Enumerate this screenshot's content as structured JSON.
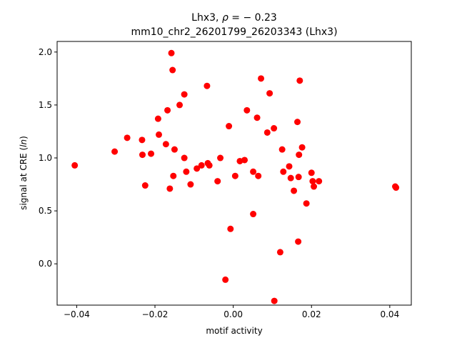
{
  "chart_data": {
    "type": "scatter",
    "title_line1_prefix": "Lhx3, ",
    "title_line1_rho": "ρ",
    "title_line1_suffix": " = − 0.23",
    "title_line2": "mm10_chr2_26201799_26203343 (Lhx3)",
    "xlabel": "motif activity",
    "ylabel_prefix": "signal at CRE (",
    "ylabel_italic": "ln",
    "ylabel_suffix": ")",
    "xlim": [
      -0.045,
      0.0455
    ],
    "ylim": [
      -0.39,
      2.1
    ],
    "xticks": [
      -0.04,
      -0.02,
      0.0,
      0.02,
      0.04
    ],
    "xtick_labels": [
      "−0.04",
      "−0.02",
      "0.00",
      "0.02",
      "0.04"
    ],
    "yticks": [
      0.0,
      0.5,
      1.0,
      1.5,
      2.0
    ],
    "ytick_labels": [
      "0.0",
      "0.5",
      "1.0",
      "1.5",
      "2.0"
    ],
    "marker_color": "#ff0000",
    "x": [
      -0.0405,
      -0.0303,
      -0.0271,
      -0.0233,
      -0.0232,
      -0.0225,
      -0.021,
      -0.0192,
      -0.019,
      -0.0172,
      -0.0168,
      -0.0162,
      -0.0158,
      -0.0155,
      -0.0153,
      -0.015,
      -0.0137,
      -0.0125,
      -0.0125,
      -0.012,
      -0.0109,
      -0.0093,
      -0.0081,
      -0.0067,
      -0.0065,
      -0.0061,
      -0.004,
      -0.0033,
      -0.002,
      -0.0011,
      -0.0007,
      0.0005,
      0.0017,
      0.0029,
      0.0035,
      0.0051,
      0.0051,
      0.0061,
      0.0064,
      0.0071,
      0.0087,
      0.0093,
      0.0104,
      0.0105,
      0.012,
      0.0125,
      0.0128,
      0.0143,
      0.0147,
      0.0155,
      0.0164,
      0.0166,
      0.0167,
      0.0168,
      0.017,
      0.0176,
      0.0187,
      0.02,
      0.0203,
      0.0206,
      0.0219,
      0.0414,
      0.0416
    ],
    "y": [
      0.93,
      1.06,
      1.19,
      1.17,
      1.03,
      0.74,
      1.04,
      1.37,
      1.22,
      1.13,
      1.45,
      0.71,
      1.99,
      1.83,
      0.83,
      1.08,
      1.5,
      1.0,
      1.6,
      0.87,
      0.75,
      0.9,
      0.93,
      1.68,
      0.95,
      0.93,
      0.78,
      1.0,
      -0.15,
      1.3,
      0.33,
      0.83,
      0.97,
      0.98,
      1.45,
      0.87,
      0.47,
      1.38,
      0.83,
      1.75,
      1.24,
      1.61,
      1.28,
      -0.35,
      0.11,
      1.08,
      0.87,
      0.92,
      0.81,
      0.69,
      1.34,
      0.21,
      0.82,
      1.03,
      1.73,
      1.1,
      0.57,
      0.86,
      0.78,
      0.73,
      0.78,
      0.73,
      0.72
    ]
  }
}
